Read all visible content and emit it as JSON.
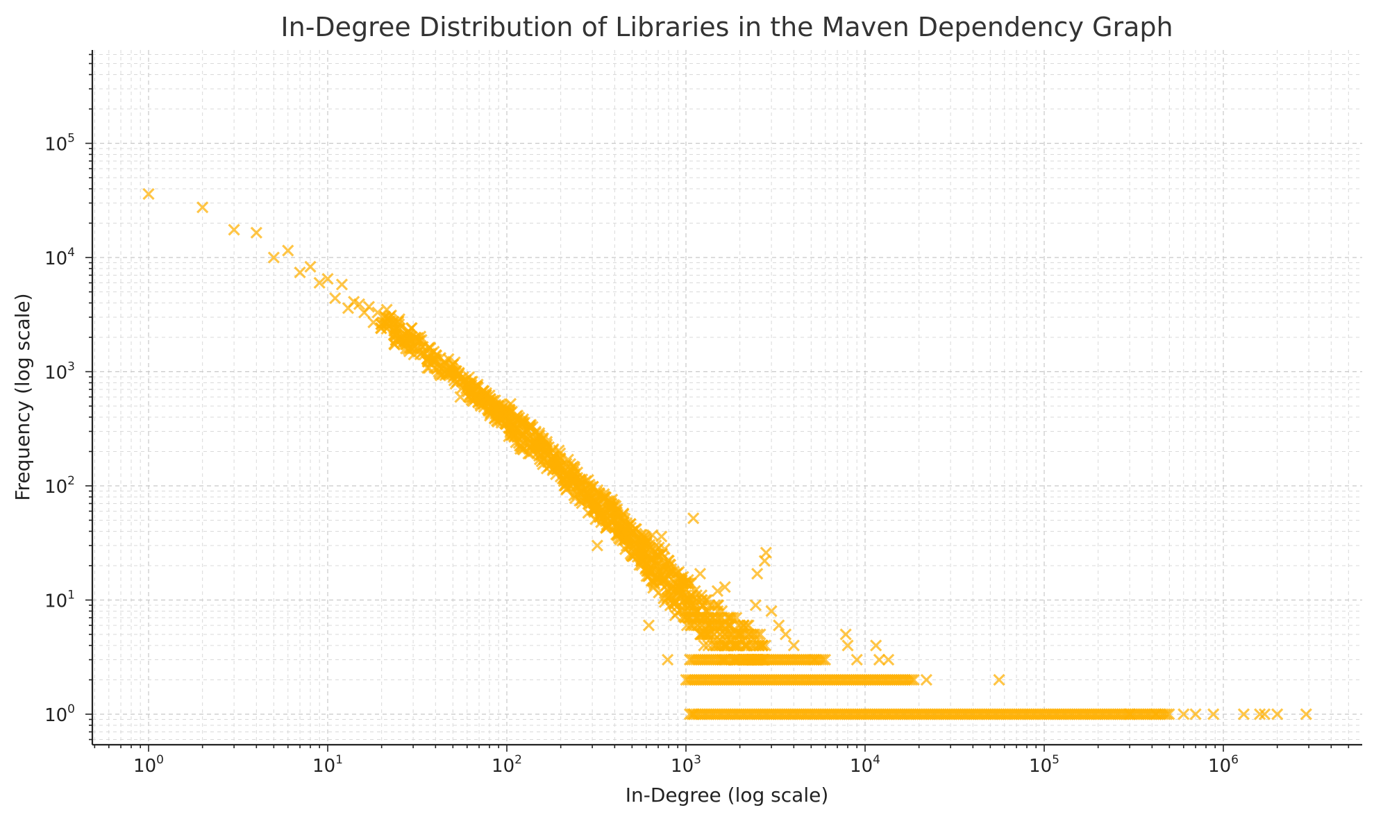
{
  "chart_data": {
    "type": "scatter",
    "title": "In-Degree Distribution of Libraries in the Maven Dependency Graph",
    "xlabel": "In-Degree (log scale)",
    "ylabel": "Frequency (log scale)",
    "x_scale": "log",
    "y_scale": "log",
    "xlim": [
      0.5,
      6000000
    ],
    "ylim": [
      0.55,
      650000
    ],
    "x_ticks": [
      1,
      10,
      100,
      1000,
      10000,
      100000,
      1000000
    ],
    "x_tick_labels": [
      {
        "base": "10",
        "exp": "0"
      },
      {
        "base": "10",
        "exp": "1"
      },
      {
        "base": "10",
        "exp": "2"
      },
      {
        "base": "10",
        "exp": "3"
      },
      {
        "base": "10",
        "exp": "4"
      },
      {
        "base": "10",
        "exp": "5"
      },
      {
        "base": "10",
        "exp": "6"
      }
    ],
    "y_ticks": [
      1,
      10,
      100,
      1000,
      10000,
      100000
    ],
    "y_tick_labels": [
      {
        "base": "10",
        "exp": "0"
      },
      {
        "base": "10",
        "exp": "1"
      },
      {
        "base": "10",
        "exp": "2"
      },
      {
        "base": "10",
        "exp": "3"
      },
      {
        "base": "10",
        "exp": "4"
      },
      {
        "base": "10",
        "exp": "5"
      }
    ],
    "grid": true,
    "marker": "x",
    "color": "#FFB000",
    "series": [
      {
        "points": [
          [
            1,
            36000
          ],
          [
            2,
            27500
          ],
          [
            3,
            17500
          ],
          [
            4,
            16500
          ],
          [
            5,
            10000
          ],
          [
            6,
            11500
          ],
          [
            7,
            7400
          ],
          [
            8,
            8300
          ],
          [
            9,
            6000
          ],
          [
            10,
            6500
          ],
          [
            11,
            4400
          ],
          [
            12,
            5800
          ],
          [
            13,
            3600
          ],
          [
            14,
            4100
          ],
          [
            15,
            3900
          ],
          [
            16,
            3300
          ],
          [
            17,
            3700
          ],
          [
            18,
            2700
          ],
          [
            19,
            3300
          ],
          [
            20,
            2600
          ],
          [
            21,
            3000
          ],
          [
            22,
            2500
          ],
          [
            23,
            2600
          ],
          [
            24,
            1900
          ],
          [
            25,
            2600
          ],
          [
            26,
            1950
          ],
          [
            27,
            1800
          ],
          [
            28,
            1900
          ],
          [
            29,
            2000
          ],
          [
            30,
            1600
          ],
          [
            32,
            1850
          ],
          [
            34,
            1500
          ],
          [
            36,
            1300
          ],
          [
            38,
            1450
          ],
          [
            40,
            1250
          ],
          [
            42,
            1100
          ],
          [
            45,
            1150
          ],
          [
            48,
            1000
          ],
          [
            50,
            980
          ],
          [
            53,
            900
          ],
          [
            56,
            820
          ],
          [
            60,
            760
          ],
          [
            64,
            700
          ],
          [
            68,
            640
          ],
          [
            72,
            600
          ],
          [
            77,
            540
          ],
          [
            82,
            500
          ],
          [
            88,
            460
          ],
          [
            94,
            420
          ],
          [
            100,
            400
          ],
          [
            105,
            360
          ],
          [
            110,
            340
          ],
          [
            118,
            300
          ],
          [
            125,
            280
          ],
          [
            135,
            250
          ],
          [
            145,
            230
          ],
          [
            155,
            210
          ],
          [
            165,
            190
          ],
          [
            178,
            170
          ],
          [
            190,
            150
          ],
          [
            205,
            140
          ],
          [
            220,
            125
          ],
          [
            235,
            112
          ],
          [
            250,
            100
          ],
          [
            270,
            90
          ],
          [
            290,
            80
          ],
          [
            310,
            72
          ],
          [
            335,
            65
          ],
          [
            360,
            58
          ],
          [
            390,
            52
          ],
          [
            420,
            46
          ],
          [
            450,
            40
          ],
          [
            490,
            35
          ],
          [
            530,
            31
          ],
          [
            570,
            27
          ],
          [
            610,
            24
          ],
          [
            660,
            20
          ],
          [
            710,
            18
          ],
          [
            770,
            15
          ],
          [
            830,
            13
          ],
          [
            900,
            11
          ],
          [
            980,
            10
          ],
          [
            1060,
            9
          ],
          [
            1150,
            8
          ],
          [
            1250,
            7
          ],
          [
            1350,
            6
          ],
          [
            1500,
            6
          ],
          [
            1650,
            5
          ],
          [
            1800,
            5
          ],
          [
            2000,
            4
          ],
          [
            2200,
            4
          ],
          [
            2450,
            4
          ],
          [
            2700,
            3
          ]
        ]
      }
    ],
    "outliers": [
      [
        55,
        600
      ],
      [
        220,
        170
      ],
      [
        320,
        30
      ],
      [
        560,
        22
      ],
      [
        620,
        6
      ],
      [
        680,
        30
      ],
      [
        730,
        36
      ],
      [
        650,
        37
      ],
      [
        760,
        28
      ],
      [
        790,
        3
      ],
      [
        1100,
        52
      ],
      [
        1200,
        17
      ],
      [
        1500,
        12
      ],
      [
        1650,
        13
      ],
      [
        2100,
        6
      ],
      [
        2450,
        9
      ],
      [
        2500,
        17
      ],
      [
        2750,
        22
      ],
      [
        2800,
        26
      ],
      [
        3000,
        8
      ],
      [
        3300,
        6
      ],
      [
        3600,
        5
      ],
      [
        4000,
        4
      ],
      [
        5200,
        3
      ],
      [
        7800,
        5
      ],
      [
        8000,
        4
      ],
      [
        9000,
        3
      ],
      [
        11500,
        4
      ],
      [
        12000,
        3
      ],
      [
        13500,
        3
      ],
      [
        22000,
        2
      ],
      [
        56000,
        2
      ],
      [
        1100,
        1
      ],
      [
        300000,
        1
      ],
      [
        420000,
        1
      ],
      [
        600000,
        1
      ],
      [
        700000,
        1
      ],
      [
        880000,
        1
      ],
      [
        1300000,
        1
      ],
      [
        1600000,
        1
      ],
      [
        1700000,
        1
      ],
      [
        2000000,
        1
      ],
      [
        2900000,
        1
      ]
    ],
    "bands": [
      {
        "y": 3,
        "x_from": 1050,
        "x_to": 6000
      },
      {
        "y": 2,
        "x_from": 1000,
        "x_to": 19000
      },
      {
        "y": 1,
        "x_from": 1050,
        "x_to": 500000
      }
    ]
  }
}
